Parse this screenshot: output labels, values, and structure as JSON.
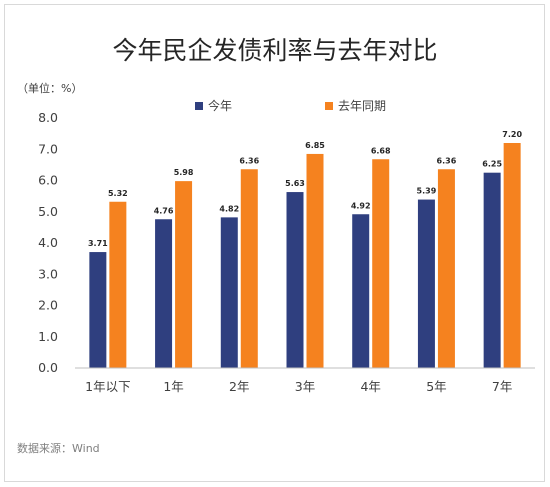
{
  "chart_data": {
    "type": "bar",
    "title": "今年民企发债利率与去年对比",
    "unit_label": "（单位：%）",
    "categories": [
      "1年以下",
      "1年",
      "2年",
      "3年",
      "4年",
      "5年",
      "7年"
    ],
    "series": [
      {
        "name": "今年",
        "color": "#2f3f7f",
        "values": [
          3.71,
          4.76,
          4.82,
          5.63,
          4.92,
          5.39,
          6.25
        ]
      },
      {
        "name": "去年同期",
        "color": "#f5821f",
        "values": [
          5.32,
          5.98,
          6.36,
          6.85,
          6.68,
          6.36,
          7.2
        ]
      }
    ],
    "value_labels": [
      [
        "3.71",
        "4.76",
        "4.82",
        "5.63",
        "4.92",
        "5.39",
        "6.25"
      ],
      [
        "5.32",
        "5.98",
        "6.36",
        "6.85",
        "6.68",
        "6.36",
        "7.20"
      ]
    ],
    "yticks": [
      "0.0",
      "1.0",
      "2.0",
      "3.0",
      "4.0",
      "5.0",
      "6.0",
      "7.0",
      "8.0"
    ],
    "ylim": [
      0,
      8
    ],
    "grid": false,
    "legend_position": "top-center",
    "source": "数据来源：Wind"
  }
}
